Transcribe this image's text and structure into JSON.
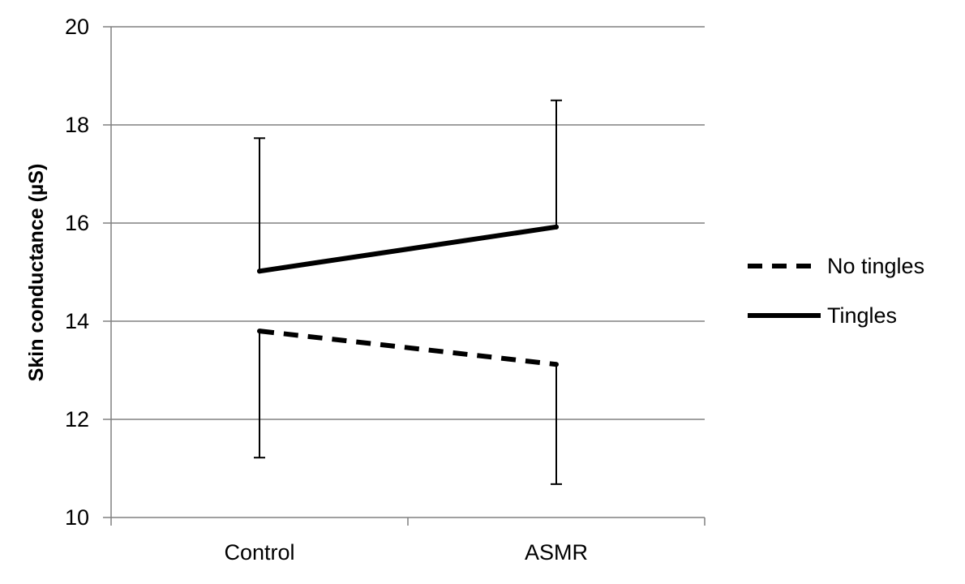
{
  "chart_data": {
    "type": "line",
    "title": "",
    "xlabel": "",
    "ylabel": "Skin conductance (µS)",
    "categories": [
      "Control",
      "ASMR"
    ],
    "ylim": [
      10,
      20
    ],
    "yticks": [
      10,
      12,
      14,
      16,
      18,
      20
    ],
    "grid": true,
    "legend_position": "right",
    "error_bars": "one-sided",
    "series": [
      {
        "name": "No tingles",
        "style": "dashed",
        "color": "#000000",
        "values": [
          13.8,
          13.12
        ],
        "error_low": [
          11.22,
          10.68
        ]
      },
      {
        "name": "Tingles",
        "style": "solid",
        "color": "#000000",
        "values": [
          15.02,
          15.92
        ],
        "error_high": [
          17.73,
          18.5
        ]
      }
    ]
  }
}
